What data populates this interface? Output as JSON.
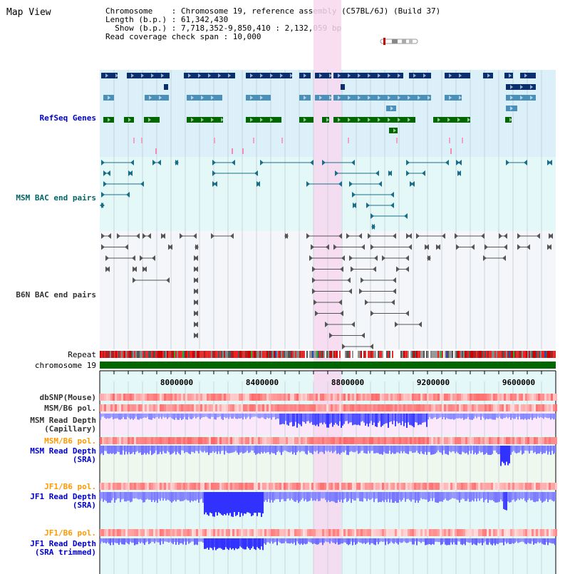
{
  "title": "Map View",
  "info": {
    "line1": "Chromosome    : Chromosome 19, reference assembly (C57BL/6J) (Build 37)",
    "line2": "Length (b.p.) : 61,342,430",
    "line3": "  Show (b.p.) : 7,718,352-9,850,410 : 2,132,059 bp",
    "line4": "Read coverage check span : 10,000"
  },
  "axis_ticks": [
    "8000000",
    "8400000",
    "8800000",
    "9200000",
    "9600000"
  ],
  "tracks": [
    {
      "key": "refseq",
      "label": "RefSeq Genes",
      "color": "#0000cc"
    },
    {
      "key": "msm_bac",
      "label": "MSM BAC end pairs",
      "color": "#006666"
    },
    {
      "key": "b6n_bac",
      "label": "B6N BAC end pairs",
      "color": "#333333"
    },
    {
      "key": "repeat",
      "label": "Repeat",
      "color": "#000000"
    },
    {
      "key": "chrom",
      "label": "chromosome 19",
      "color": "#000000"
    },
    {
      "key": "dbsnp",
      "label": "dbSNP(Mouse)",
      "color": "#333333"
    },
    {
      "key": "msm_b6_pol_1",
      "label": "MSM/B6 pol.",
      "color": "#333333"
    },
    {
      "key": "msm_depth_cap",
      "label": "MSM Read Depth\n(Capillary)",
      "color": "#333333"
    },
    {
      "key": "msm_b6_pol_2",
      "label": "MSM/B6 pol.",
      "color": "#ff9900"
    },
    {
      "key": "msm_depth_sra",
      "label": "MSM Read Depth\n(SRA)",
      "color": "#0000cc"
    },
    {
      "key": "jf1_b6_pol_1",
      "label": "JF1/B6 pol.",
      "color": "#ff9900"
    },
    {
      "key": "jf1_depth_sra",
      "label": "JF1 Read Depth\n(SRA)",
      "color": "#0000cc"
    },
    {
      "key": "jf1_b6_pol_2",
      "label": "JF1/B6 pol.",
      "color": "#ff9900"
    },
    {
      "key": "jf1_depth_trim",
      "label": "JF1 Read Depth\n(SRA trimmed)",
      "color": "#0000cc"
    }
  ],
  "colors": {
    "refseq_bg": "#dcf0fa",
    "msm_bg": "#e4f8f8",
    "b6n_bg": "#f4f6fa",
    "highlight": "#f8d8f0",
    "chrom": "#006600",
    "refseq_dark": "#0a2f6e",
    "refseq_mid": "#4a90b8",
    "refseq_green": "#006600",
    "depth_blue": "#3b3bf0",
    "pol_red": "#ee3333"
  }
}
